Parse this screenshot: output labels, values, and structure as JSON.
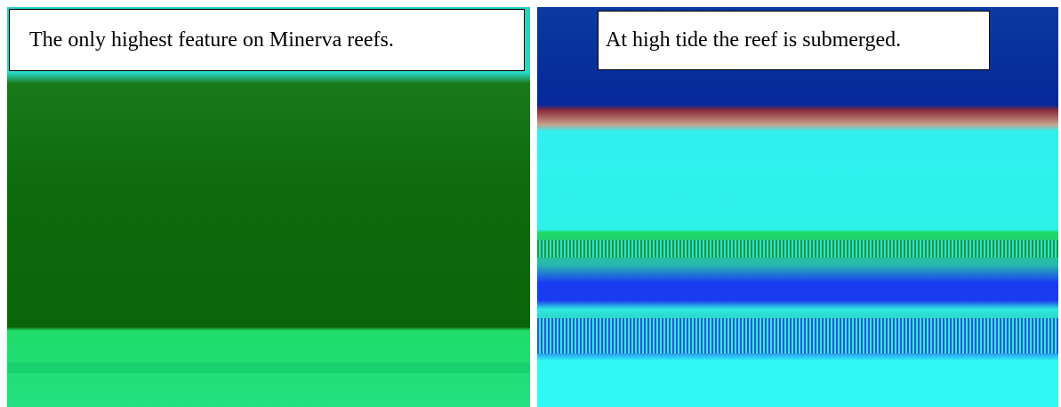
{
  "panels": [
    {
      "caption": "The only highest feature on Minerva reefs."
    },
    {
      "caption": "At high tide the reef is submerged."
    }
  ]
}
